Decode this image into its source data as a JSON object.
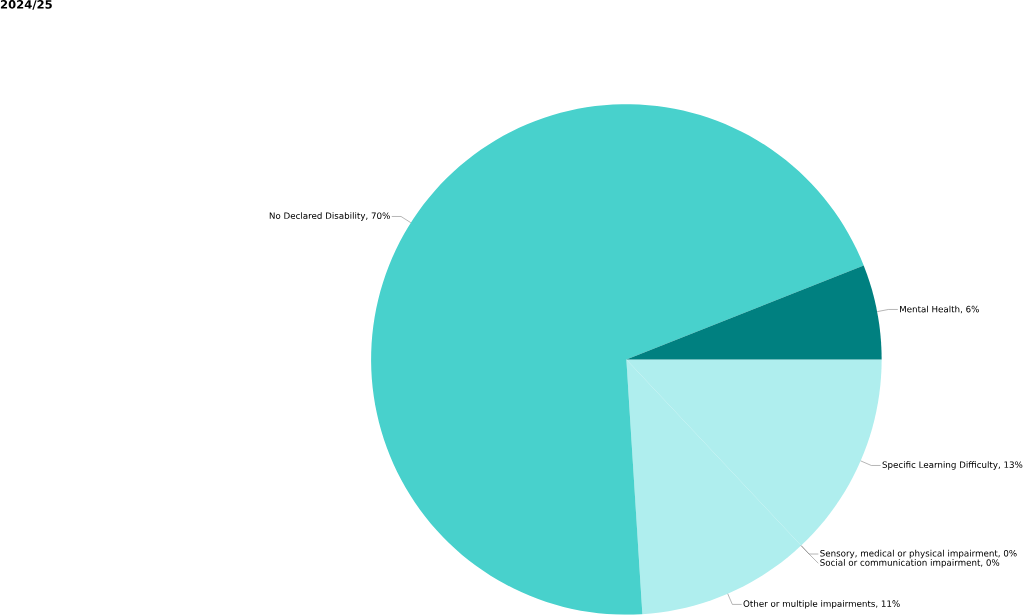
{
  "chart_data": {
    "type": "pie",
    "title": "2024/25",
    "categories": [
      "Specific Learning Difficulty",
      "Sensory, medical or physical impairment",
      "Social or communication impairment",
      "Other or multiple impairments",
      "No Declared Disability",
      "Mental Health"
    ],
    "values": [
      13,
      0,
      0,
      11,
      70,
      6
    ],
    "value_labels": [
      ", 13%",
      ", 0%",
      ", 0%",
      ", 11%",
      ", 70%",
      ", 6%"
    ],
    "colors": [
      "#afeeee",
      "#40e0d0",
      "#20b2aa",
      "#afeeee",
      "#48d1cc",
      "#008080"
    ]
  }
}
